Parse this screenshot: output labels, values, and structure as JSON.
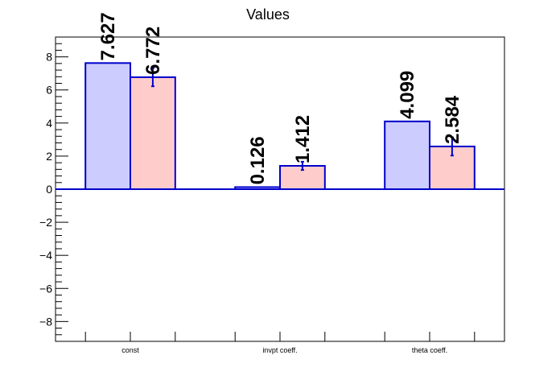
{
  "chart_data": {
    "type": "bar",
    "title": "Values",
    "xlabel": "",
    "ylabel": "",
    "categories": [
      "const",
      "invpt coeff.",
      "theta coeff."
    ],
    "ylim": [
      -9.2,
      9.2
    ],
    "yticks": [
      -8,
      -6,
      -4,
      -2,
      0,
      2,
      4,
      6,
      8
    ],
    "ytick_labels": [
      "−8",
      "−6",
      "−4",
      "−2",
      "0",
      "2",
      "4",
      "6",
      "8"
    ],
    "grid": false,
    "legend": "none",
    "series": [
      {
        "values": [
          7.627,
          0.126,
          4.099
        ],
        "labels": [
          "7.627",
          "0.126",
          "4.099"
        ],
        "errors": [
          0,
          0,
          0
        ],
        "fill": "#ccccff",
        "stroke": "#0000cc"
      },
      {
        "values": [
          6.772,
          1.412,
          2.584
        ],
        "labels": [
          "6.772",
          "1.412",
          "2.584"
        ],
        "errors": [
          0.55,
          0.25,
          0.55
        ],
        "fill": "#ffcccc",
        "stroke": "#0000cc"
      }
    ]
  }
}
